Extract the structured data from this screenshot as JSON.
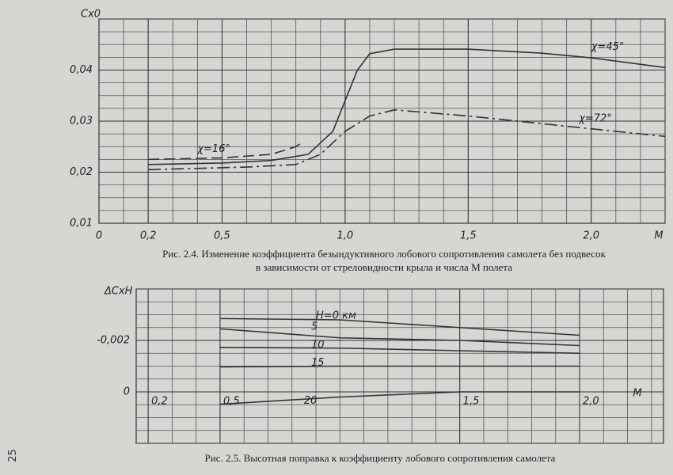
{
  "page_number": "25",
  "chart_data": [
    {
      "type": "line",
      "caption": "Рис. 2.4. Изменение коэффициента безындуктивного лобового сопротивления самолета без подвесок в зависимости от стреловидности крыла и числа М полета",
      "x_label": "M",
      "y_label": "Cx0",
      "xlim": [
        0,
        2.3
      ],
      "ylim": [
        0.01,
        0.05
      ],
      "xticks": [
        0,
        {
          "value": 0.2,
          "label": "0,2"
        },
        {
          "value": 0.5,
          "label": "0,5"
        },
        {
          "value": 1.0,
          "label": "1,0"
        },
        {
          "value": 1.5,
          "label": "1,5"
        },
        {
          "value": 2.0,
          "label": "2,0"
        }
      ],
      "yticks": [
        {
          "value": 0.01,
          "label": "0,01"
        },
        {
          "value": 0.02,
          "label": "0,02"
        },
        {
          "value": 0.03,
          "label": "0,03"
        },
        {
          "value": 0.04,
          "label": "0,04"
        }
      ],
      "grid": true,
      "series": [
        {
          "name": "χ=16°",
          "color": "#333333",
          "style": "dashed",
          "x": [
            0.2,
            0.5,
            0.7,
            0.8,
            0.83
          ],
          "values": [
            0.0225,
            0.0228,
            0.0235,
            0.025,
            0.026
          ]
        },
        {
          "name": "χ=45°",
          "color": "#333333",
          "style": "solid",
          "x": [
            0.2,
            0.5,
            0.7,
            0.85,
            0.95,
            1.0,
            1.05,
            1.1,
            1.2,
            1.5,
            1.8,
            2.0,
            2.3
          ],
          "values": [
            0.0215,
            0.0218,
            0.0223,
            0.0235,
            0.028,
            0.034,
            0.04,
            0.0432,
            0.0441,
            0.0441,
            0.0433,
            0.0424,
            0.0405
          ]
        },
        {
          "name": "χ=72°",
          "color": "#333333",
          "style": "dashdot",
          "x": [
            0.2,
            0.6,
            0.8,
            0.9,
            1.0,
            1.1,
            1.2,
            1.5,
            2.0,
            2.3
          ],
          "values": [
            0.0205,
            0.021,
            0.0215,
            0.0235,
            0.028,
            0.031,
            0.0322,
            0.031,
            0.0285,
            0.027
          ]
        }
      ]
    },
    {
      "type": "line",
      "caption": "Рис. 2.5. Высотная поправка к коэффициенту лобового сопротивления самолета",
      "x_label": "M",
      "y_label": "ΔCxH",
      "xlim": [
        0.15,
        2.35
      ],
      "ylim": [
        0.002,
        -0.004
      ],
      "xticks": [
        {
          "value": 0.2,
          "label": "0,2"
        },
        {
          "value": 0.5,
          "label": "0,5"
        },
        {
          "value": 1.5,
          "label": "1,5"
        },
        {
          "value": 2.0,
          "label": "2,0"
        }
      ],
      "yticks": [
        {
          "value": -0.002,
          "label": "-0,002"
        },
        0
      ],
      "grid": true,
      "series": [
        {
          "name": "H=0 км",
          "color": "#333333",
          "style": "solid",
          "x": [
            0.5,
            1.0,
            1.5,
            2.0
          ],
          "values": [
            -0.00285,
            -0.0028,
            -0.0025,
            -0.0022
          ]
        },
        {
          "name": "5",
          "color": "#333333",
          "style": "solid",
          "x": [
            0.5,
            1.0,
            1.5,
            2.0
          ],
          "values": [
            -0.00245,
            -0.0021,
            -0.002,
            -0.0018
          ]
        },
        {
          "name": "10",
          "color": "#333333",
          "style": "solid",
          "x": [
            0.5,
            1.0,
            1.5,
            2.0
          ],
          "values": [
            -0.00173,
            -0.0017,
            -0.0016,
            -0.0015
          ]
        },
        {
          "name": "15",
          "color": "#333333",
          "style": "solid",
          "x": [
            0.5,
            1.0,
            1.5,
            2.0
          ],
          "values": [
            -0.00097,
            -0.001,
            -0.001,
            -0.001
          ]
        },
        {
          "name": "20",
          "color": "#333333",
          "style": "solid",
          "x": [
            0.5,
            1.0,
            1.5,
            2.0
          ],
          "values": [
            0.00048,
            0.0002,
            0.0,
            0.0
          ]
        }
      ]
    }
  ]
}
